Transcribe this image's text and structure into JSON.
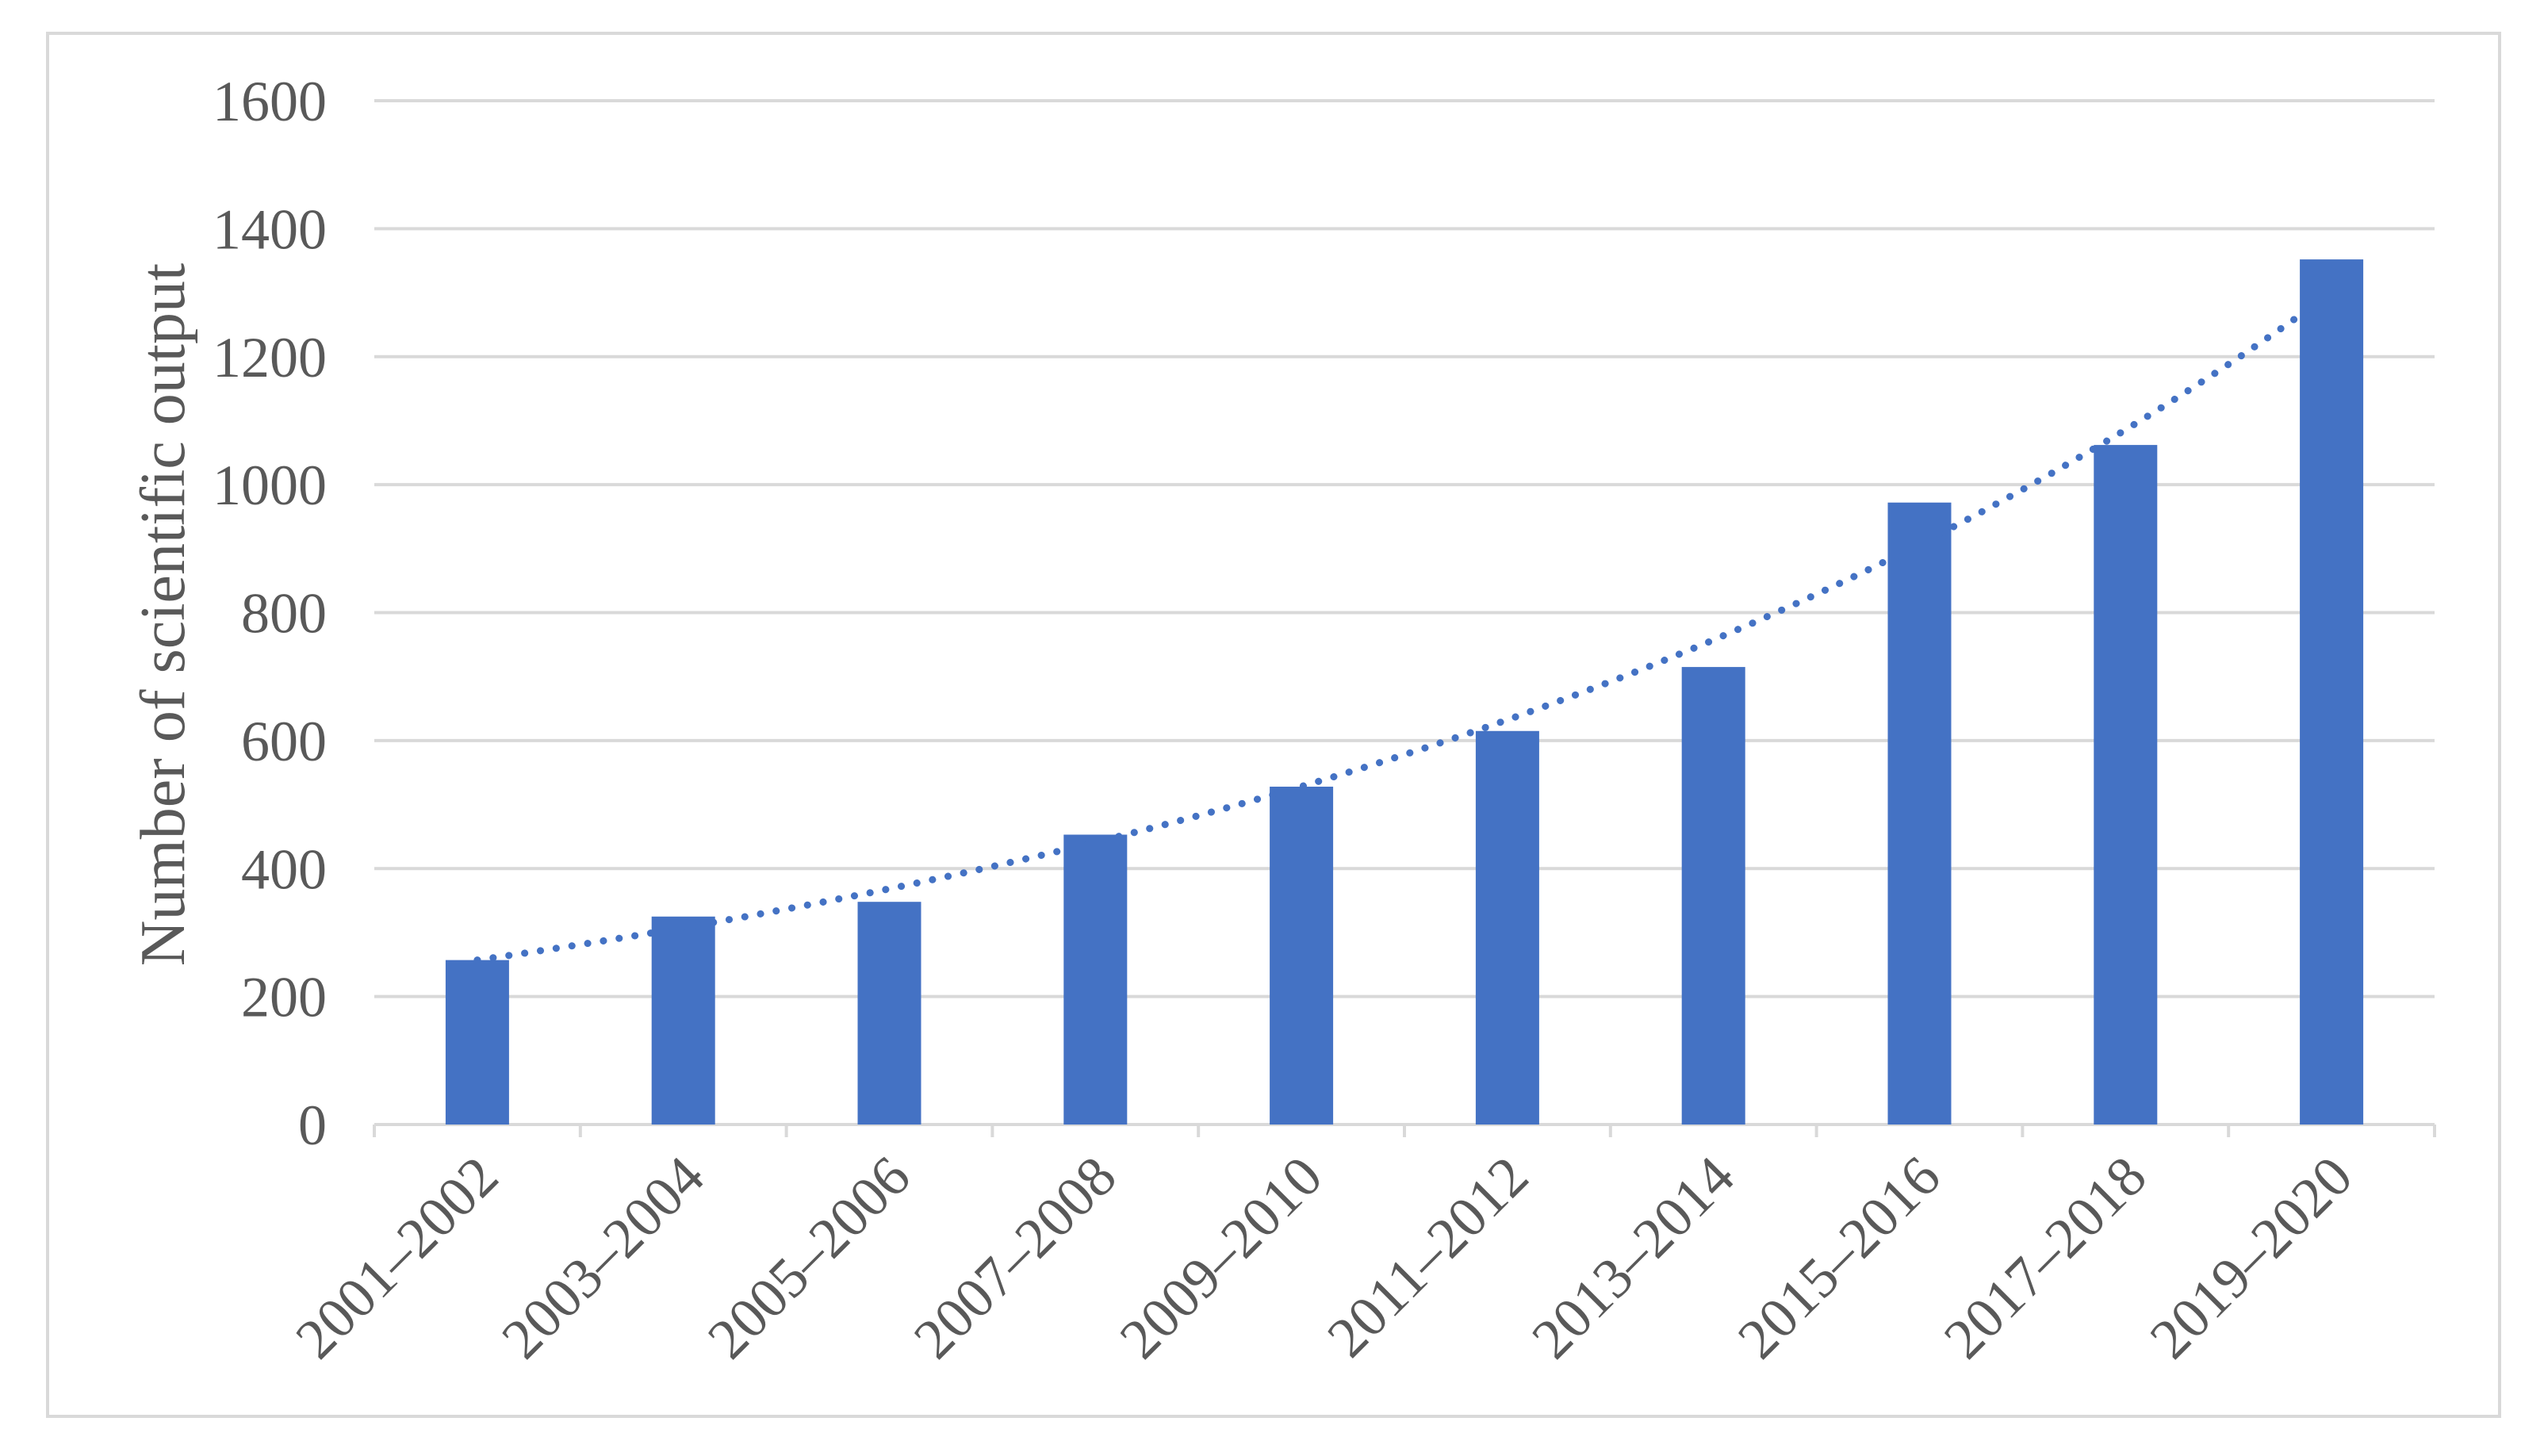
{
  "chart_data": {
    "type": "bar",
    "title": "",
    "xlabel": "",
    "ylabel": "Number of scientific output",
    "categories": [
      "2001–2002",
      "2003–2004",
      "2005–2006",
      "2007–2008",
      "2009–2010",
      "2011–2012",
      "2013–2014",
      "2015–2016",
      "2017–2018",
      "2019–2020"
    ],
    "series": [
      {
        "values": [
          257,
          325,
          348,
          453,
          528,
          615,
          715,
          972,
          1062,
          1352
        ]
      }
    ],
    "trendline": {
      "type": "exponential",
      "style": "dotted",
      "start_value": 257,
      "end_value": 1300
    },
    "ylim": [
      0,
      1600
    ],
    "yticks": [
      0,
      200,
      400,
      600,
      800,
      1000,
      1200,
      1400,
      1600
    ],
    "grid": true,
    "legend": "none",
    "colors": {
      "bar": "#4472c4",
      "trendline": "#4472c4",
      "grid": "#d9d9d9",
      "text": "#595959"
    }
  }
}
